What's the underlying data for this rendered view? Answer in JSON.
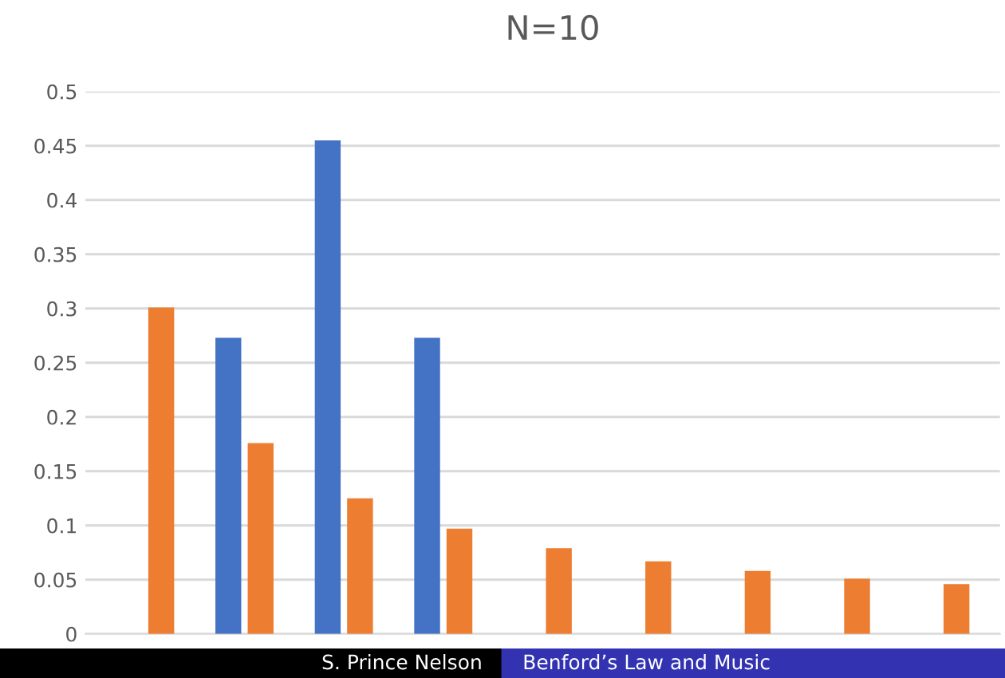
{
  "chart_data": {
    "type": "bar",
    "title": "N=10",
    "categories": [
      null,
      null,
      null,
      null,
      null,
      null,
      null,
      null,
      null
    ],
    "series": [
      {
        "color": "#4472c4",
        "values": [
          0,
          0.273,
          0.455,
          0.273,
          0,
          0,
          0,
          0,
          0
        ]
      },
      {
        "color": "#ed7d31",
        "values": [
          0.301,
          0.176,
          0.125,
          0.097,
          0.079,
          0.067,
          0.058,
          0.051,
          0.046
        ]
      }
    ],
    "ylim": [
      0,
      0.5
    ],
    "yticks": [
      0,
      0.05,
      0.1,
      0.15,
      0.2,
      0.25,
      0.3,
      0.35,
      0.4,
      0.45,
      0.5
    ],
    "grid": "y",
    "tick_labels": "y",
    "annotations": [
      "S. Prince Nelson",
      "Benford’s Law and Music"
    ]
  }
}
